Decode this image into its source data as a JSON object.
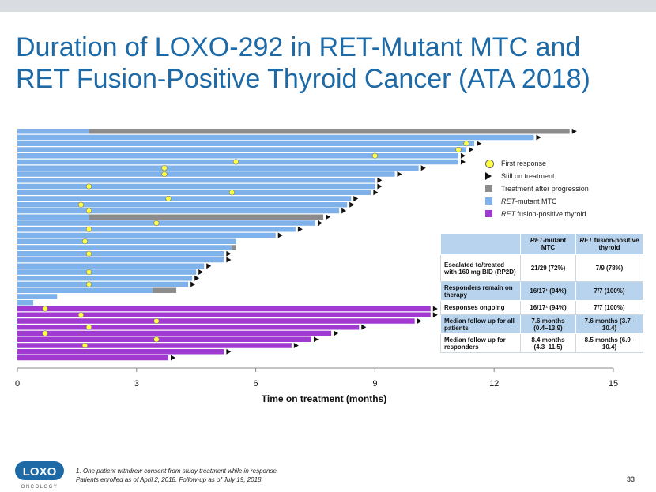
{
  "title": "Duration of LOXO-292 in RET-Mutant MTC and RET Fusion-Positive Thyroid Cancer (ATA 2018)",
  "legend": {
    "first_response": "First response",
    "still_on_treatment": "Still on treatment",
    "after_progression": "Treatment after progression",
    "ret_mtc_italic": "RET",
    "ret_mtc_rest": "-mutant MTC",
    "ret_fusion_italic": "RET",
    "ret_fusion_rest": " fusion-positive thyroid"
  },
  "colors": {
    "mtc": "#7fb2ea",
    "fusion": "#a13ad0",
    "progression": "#8c8c8c",
    "response": "#ffff44",
    "title": "#1e6aa7",
    "table_shade": "#b7d3ed"
  },
  "table": {
    "header": {
      "col1_italic": "RET",
      "col1_rest": "-mutant MTC",
      "col2_italic": "RET",
      "col2_rest": " fusion-positive thyroid"
    },
    "rows": [
      {
        "label": "Escalated to/treated with 160 mg BID (RP2D)",
        "mtc": "21/29 (72%)",
        "fusion": "7/9 (78%)"
      },
      {
        "label": "Responders remain on therapy",
        "mtc": "16/17¹ (94%)",
        "fusion": "7/7 (100%)"
      },
      {
        "label": "Responses ongoing",
        "mtc": "16/17¹ (94%)",
        "fusion": "7/7 (100%)"
      },
      {
        "label": "Median follow up for all patients",
        "mtc": "7.6 months (0.4–13.9)",
        "fusion": "7.6 months (3.7–10.4)"
      },
      {
        "label": "Median follow up for responders",
        "mtc": "8.4 months (4.3–11.5)",
        "fusion": "8.5 months (6.9–10.4)"
      }
    ]
  },
  "footnote_line1": "1. One patient withdrew consent from study treatment while in response.",
  "footnote_line2": "Patients enrolled as of April 2, 2018. Follow-up as of July 19, 2018.",
  "page_number": "33",
  "logo_text": "LOXO",
  "logo_subtext": "ONCOLOGY",
  "chart_data": {
    "type": "bar",
    "orientation": "horizontal swimmer",
    "xlabel": "Time on treatment (months)",
    "xlim": [
      0,
      15
    ],
    "xticks": [
      0,
      3,
      6,
      9,
      12,
      15
    ],
    "series": [
      {
        "name": "RET-mutant MTC",
        "patients": [
          {
            "duration": 13.9,
            "progression_start": 1.8,
            "response": null,
            "ongoing": true
          },
          {
            "duration": 13.0,
            "progression_start": null,
            "response": null,
            "ongoing": true
          },
          {
            "duration": 11.5,
            "progression_start": null,
            "response": 11.3,
            "ongoing": true
          },
          {
            "duration": 11.3,
            "progression_start": null,
            "response": 11.1,
            "ongoing": true
          },
          {
            "duration": 11.1,
            "progression_start": null,
            "response": 9.0,
            "ongoing": true
          },
          {
            "duration": 11.1,
            "progression_start": null,
            "response": 5.5,
            "ongoing": true
          },
          {
            "duration": 10.1,
            "progression_start": null,
            "response": 3.7,
            "ongoing": true
          },
          {
            "duration": 9.5,
            "progression_start": null,
            "response": 3.7,
            "ongoing": true
          },
          {
            "duration": 9.0,
            "progression_start": null,
            "response": null,
            "ongoing": true
          },
          {
            "duration": 9.0,
            "progression_start": null,
            "response": 1.8,
            "ongoing": true
          },
          {
            "duration": 8.9,
            "progression_start": null,
            "response": 5.4,
            "ongoing": true
          },
          {
            "duration": 8.4,
            "progression_start": null,
            "response": 3.8,
            "ongoing": true
          },
          {
            "duration": 8.3,
            "progression_start": null,
            "response": 1.6,
            "ongoing": true
          },
          {
            "duration": 8.1,
            "progression_start": null,
            "response": 1.8,
            "ongoing": true
          },
          {
            "duration": 7.7,
            "progression_start": 1.8,
            "response": null,
            "ongoing": true
          },
          {
            "duration": 7.5,
            "progression_start": null,
            "response": 3.5,
            "ongoing": true
          },
          {
            "duration": 7.0,
            "progression_start": null,
            "response": 1.8,
            "ongoing": true
          },
          {
            "duration": 6.5,
            "progression_start": null,
            "response": null,
            "ongoing": true
          },
          {
            "duration": 5.5,
            "progression_start": null,
            "response": 1.7,
            "ongoing": false
          },
          {
            "duration": 5.5,
            "progression_start": 5.4,
            "response": null,
            "ongoing": false
          },
          {
            "duration": 5.2,
            "progression_start": null,
            "response": 1.8,
            "ongoing": true
          },
          {
            "duration": 5.2,
            "progression_start": null,
            "response": null,
            "ongoing": true
          },
          {
            "duration": 4.7,
            "progression_start": null,
            "response": null,
            "ongoing": true
          },
          {
            "duration": 4.5,
            "progression_start": null,
            "response": 1.8,
            "ongoing": true
          },
          {
            "duration": 4.4,
            "progression_start": null,
            "response": null,
            "ongoing": true
          },
          {
            "duration": 4.3,
            "progression_start": null,
            "response": 1.8,
            "ongoing": true
          },
          {
            "duration": 4.0,
            "progression_start": 3.4,
            "response": null,
            "ongoing": false
          },
          {
            "duration": 1.0,
            "progression_start": null,
            "response": null,
            "ongoing": false
          },
          {
            "duration": 0.4,
            "progression_start": null,
            "response": null,
            "ongoing": false
          }
        ]
      },
      {
        "name": "RET fusion-positive thyroid",
        "patients": [
          {
            "duration": 10.4,
            "progression_start": null,
            "response": 0.7,
            "ongoing": true
          },
          {
            "duration": 10.4,
            "progression_start": null,
            "response": 1.6,
            "ongoing": true
          },
          {
            "duration": 10.0,
            "progression_start": null,
            "response": 3.5,
            "ongoing": true
          },
          {
            "duration": 8.6,
            "progression_start": null,
            "response": 1.8,
            "ongoing": true
          },
          {
            "duration": 7.9,
            "progression_start": null,
            "response": 0.7,
            "ongoing": true
          },
          {
            "duration": 7.4,
            "progression_start": null,
            "response": 3.5,
            "ongoing": true
          },
          {
            "duration": 6.9,
            "progression_start": null,
            "response": 1.7,
            "ongoing": true
          },
          {
            "duration": 5.2,
            "progression_start": null,
            "response": null,
            "ongoing": true
          },
          {
            "duration": 3.8,
            "progression_start": null,
            "response": null,
            "ongoing": true
          }
        ]
      }
    ]
  }
}
